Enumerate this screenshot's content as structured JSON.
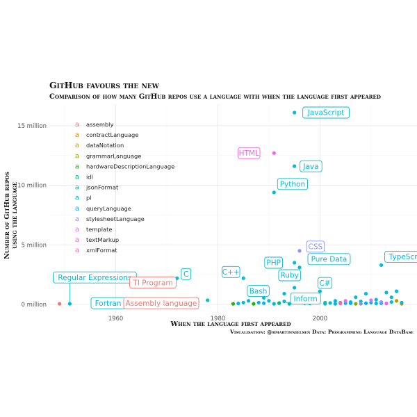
{
  "chart_data": {
    "type": "scatter",
    "title": "GitHub favours the new",
    "subtitle": "Comparison of how many GitHub repos use a language with when the language first appeared",
    "xlabel": "When the language first appeared",
    "ylabel": [
      "Number of GitHub repos",
      "using the language"
    ],
    "caption": "Visualisation: @rmartinnielsen Data: Programming Language DataBase",
    "xlim": [
      1947,
      2019
    ],
    "ylim": [
      -700000,
      16800000
    ],
    "x_ticks": [
      1960,
      1980,
      2000
    ],
    "y_ticks": [
      0,
      5000000,
      10000000,
      15000000
    ],
    "y_tick_labels": [
      "0 million",
      "5 million",
      "10 million",
      "15 million"
    ],
    "grid": true,
    "legend_position": "top-left",
    "legend": [
      {
        "key": "assembly",
        "label": "assembly",
        "color": "#F8766D"
      },
      {
        "key": "contractLanguage",
        "label": "contractLanguage",
        "color": "#E18A00"
      },
      {
        "key": "dataNotation",
        "label": "dataNotation",
        "color": "#BE9C00"
      },
      {
        "key": "grammarLanguage",
        "label": "grammarLanguage",
        "color": "#8CAB00"
      },
      {
        "key": "hardwareDescriptionLanguage",
        "label": "hardwareDescriptionLanguage",
        "color": "#24B700"
      },
      {
        "key": "idl",
        "label": "idl",
        "color": "#00BE70"
      },
      {
        "key": "jsonFormat",
        "label": "jsonFormat",
        "color": "#00C1AB"
      },
      {
        "key": "pl",
        "label": "pl",
        "color": "#00BBDA"
      },
      {
        "key": "queryLanguage",
        "label": "queryLanguage",
        "color": "#00ACFC"
      },
      {
        "key": "stylesheetLanguage",
        "label": "stylesheetLanguage",
        "color": "#8B93FF"
      },
      {
        "key": "template",
        "label": "template",
        "color": "#D575FE"
      },
      {
        "key": "textMarkup",
        "label": "textMarkup",
        "color": "#F962DD"
      },
      {
        "key": "xmlFormat",
        "label": "xmlFormat",
        "color": "#FF65AC"
      }
    ],
    "labeled_points": [
      {
        "label": "JavaScript",
        "x": 1995,
        "y": 16100000,
        "type": "pl"
      },
      {
        "label": "HTML",
        "x": 1991,
        "y": 12700000,
        "type": "textMarkup"
      },
      {
        "label": "Java",
        "x": 1995,
        "y": 11600000,
        "type": "pl"
      },
      {
        "label": "Python",
        "x": 1991,
        "y": 9400000,
        "type": "pl"
      },
      {
        "label": "CSS",
        "x": 1996,
        "y": 4500000,
        "type": "stylesheetLanguage"
      },
      {
        "label": "PHP",
        "x": 1995,
        "y": 3500000,
        "type": "pl"
      },
      {
        "label": "Pure Data",
        "x": 1996,
        "y": 3100000,
        "type": "pl"
      },
      {
        "label": "TypeScript",
        "x": 2012,
        "y": 3300000,
        "type": "pl"
      },
      {
        "label": "C",
        "x": 1972,
        "y": 2200000,
        "type": "pl"
      },
      {
        "label": "C++",
        "x": 1985,
        "y": 2200000,
        "type": "pl"
      },
      {
        "label": "Regular Expressions",
        "x": 1951,
        "y": 50000,
        "type": "pl"
      },
      {
        "label": "TI Program",
        "x": 1970,
        "y": 1600000,
        "type": "assembly"
      },
      {
        "label": "Ruby",
        "x": 1995,
        "y": 1400000,
        "type": "pl"
      },
      {
        "label": "C#",
        "x": 2000,
        "y": 1100000,
        "type": "pl"
      },
      {
        "label": "Bash",
        "x": 1989,
        "y": 550000,
        "type": "pl"
      },
      {
        "label": "Inform",
        "x": 1993,
        "y": 250000,
        "type": "pl"
      },
      {
        "label": "Fortran",
        "x": 1957,
        "y": 50000,
        "type": "pl"
      },
      {
        "label": "Assembly language",
        "x": 1949,
        "y": 50000,
        "type": "assembly"
      }
    ],
    "points": [
      {
        "x": 1972,
        "y": 50000,
        "type": "pl"
      },
      {
        "x": 1976,
        "y": 250000,
        "type": "pl"
      },
      {
        "x": 1978,
        "y": 350000,
        "type": "pl"
      },
      {
        "x": 1984,
        "y": 80000,
        "type": "pl"
      },
      {
        "x": 1985,
        "y": 150000,
        "type": "pl"
      },
      {
        "x": 1986,
        "y": 300000,
        "type": "pl"
      },
      {
        "x": 1987,
        "y": 1300000,
        "type": "pl"
      },
      {
        "x": 1988,
        "y": 150000,
        "type": "pl"
      },
      {
        "x": 1989,
        "y": 100000,
        "type": "pl"
      },
      {
        "x": 1990,
        "y": 300000,
        "type": "pl"
      },
      {
        "x": 1991,
        "y": 50000,
        "type": "pl"
      },
      {
        "x": 1992,
        "y": 100000,
        "type": "pl"
      },
      {
        "x": 1993,
        "y": 900000,
        "type": "pl"
      },
      {
        "x": 1994,
        "y": 50000,
        "type": "pl"
      },
      {
        "x": 1995,
        "y": 200000,
        "type": "pl"
      },
      {
        "x": 1997,
        "y": 100000,
        "type": "pl"
      },
      {
        "x": 1998,
        "y": 80000,
        "type": "pl"
      },
      {
        "x": 1999,
        "y": 400000,
        "type": "pl"
      },
      {
        "x": 2001,
        "y": 50000,
        "type": "pl"
      },
      {
        "x": 2002,
        "y": 120000,
        "type": "pl"
      },
      {
        "x": 2003,
        "y": 300000,
        "type": "pl"
      },
      {
        "x": 2004,
        "y": 150000,
        "type": "pl"
      },
      {
        "x": 2005,
        "y": 100000,
        "type": "pl"
      },
      {
        "x": 2006,
        "y": 200000,
        "type": "pl"
      },
      {
        "x": 2007,
        "y": 600000,
        "type": "pl"
      },
      {
        "x": 2008,
        "y": 250000,
        "type": "pl"
      },
      {
        "x": 2009,
        "y": 900000,
        "type": "pl"
      },
      {
        "x": 2010,
        "y": 150000,
        "type": "pl"
      },
      {
        "x": 2011,
        "y": 400000,
        "type": "pl"
      },
      {
        "x": 2012,
        "y": 100000,
        "type": "pl"
      },
      {
        "x": 2013,
        "y": 1000000,
        "type": "pl"
      },
      {
        "x": 2014,
        "y": 600000,
        "type": "pl"
      },
      {
        "x": 2015,
        "y": 1100000,
        "type": "pl"
      },
      {
        "x": 2016,
        "y": 150000,
        "type": "pl"
      },
      {
        "x": 2014,
        "y": 200000,
        "type": "pl"
      },
      {
        "x": 2011,
        "y": 80000,
        "type": "pl"
      },
      {
        "x": 2005,
        "y": 300000,
        "type": "template"
      },
      {
        "x": 2010,
        "y": 350000,
        "type": "template"
      },
      {
        "x": 2008,
        "y": 50000,
        "type": "stylesheetLanguage"
      },
      {
        "x": 2012,
        "y": 200000,
        "type": "stylesheetLanguage"
      },
      {
        "x": 1999,
        "y": 700000,
        "type": "textMarkup"
      },
      {
        "x": 2013,
        "y": 80000,
        "type": "textMarkup"
      },
      {
        "x": 2004,
        "y": 80000,
        "type": "xmlFormat"
      },
      {
        "x": 2015,
        "y": 300000,
        "type": "dataNotation"
      },
      {
        "x": 2016,
        "y": 50000,
        "type": "contractLanguage"
      },
      {
        "x": 1983,
        "y": 50000,
        "type": "hardwareDescriptionLanguage"
      },
      {
        "x": 1987,
        "y": 50000,
        "type": "hardwareDescriptionLanguage"
      },
      {
        "x": 2007,
        "y": 50000,
        "type": "grammarLanguage"
      },
      {
        "x": 2001,
        "y": 150000,
        "type": "jsonFormat"
      },
      {
        "x": 2006,
        "y": 100000,
        "type": "queryLanguage"
      },
      {
        "x": 1992,
        "y": 120000,
        "type": "idl"
      },
      {
        "x": 1994,
        "y": 50000,
        "type": "jsonFormat"
      },
      {
        "x": 2009,
        "y": 100000,
        "type": "queryLanguage"
      },
      {
        "x": 2016,
        "y": 150000,
        "type": "pl"
      },
      {
        "x": 2003,
        "y": 50000,
        "type": "pl"
      }
    ]
  }
}
